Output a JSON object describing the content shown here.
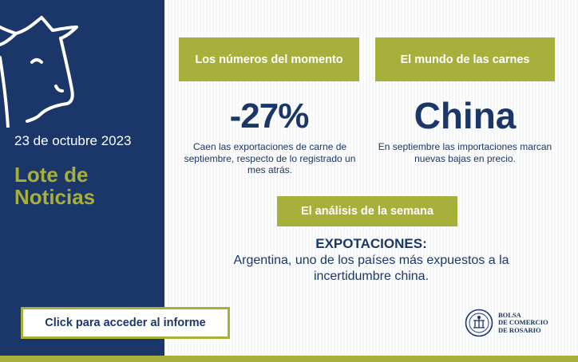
{
  "sidebar": {
    "date": "23 de octubre 2023",
    "headline": "Lote de Noticias",
    "cta_label": "Click para acceder al informe"
  },
  "cards": {
    "numeros": {
      "label": "Los números del momento",
      "value": "-27%",
      "description": "Caen las exportaciones de carne de septiembre, respecto de lo registrado un mes atrás."
    },
    "mundo": {
      "label": "El mundo de las carnes",
      "value": "China",
      "description": "En septiembre las importaciones marcan nuevas bajas en precio."
    }
  },
  "analysis": {
    "label": "El análisis de la semana",
    "title": "EXPOTACIONES:",
    "body": "Argentina, uno de los países más expuestos a la incertidumbre china."
  },
  "logo": {
    "line1": "BOLSA",
    "line2": "DE COMERCIO",
    "line3": "DE ROSARIO"
  },
  "colors": {
    "navy": "#1b3668",
    "olive": "#a6b03a",
    "white": "#ffffff"
  },
  "icons": [
    "cow-icon",
    "bolsa-seal-icon"
  ]
}
